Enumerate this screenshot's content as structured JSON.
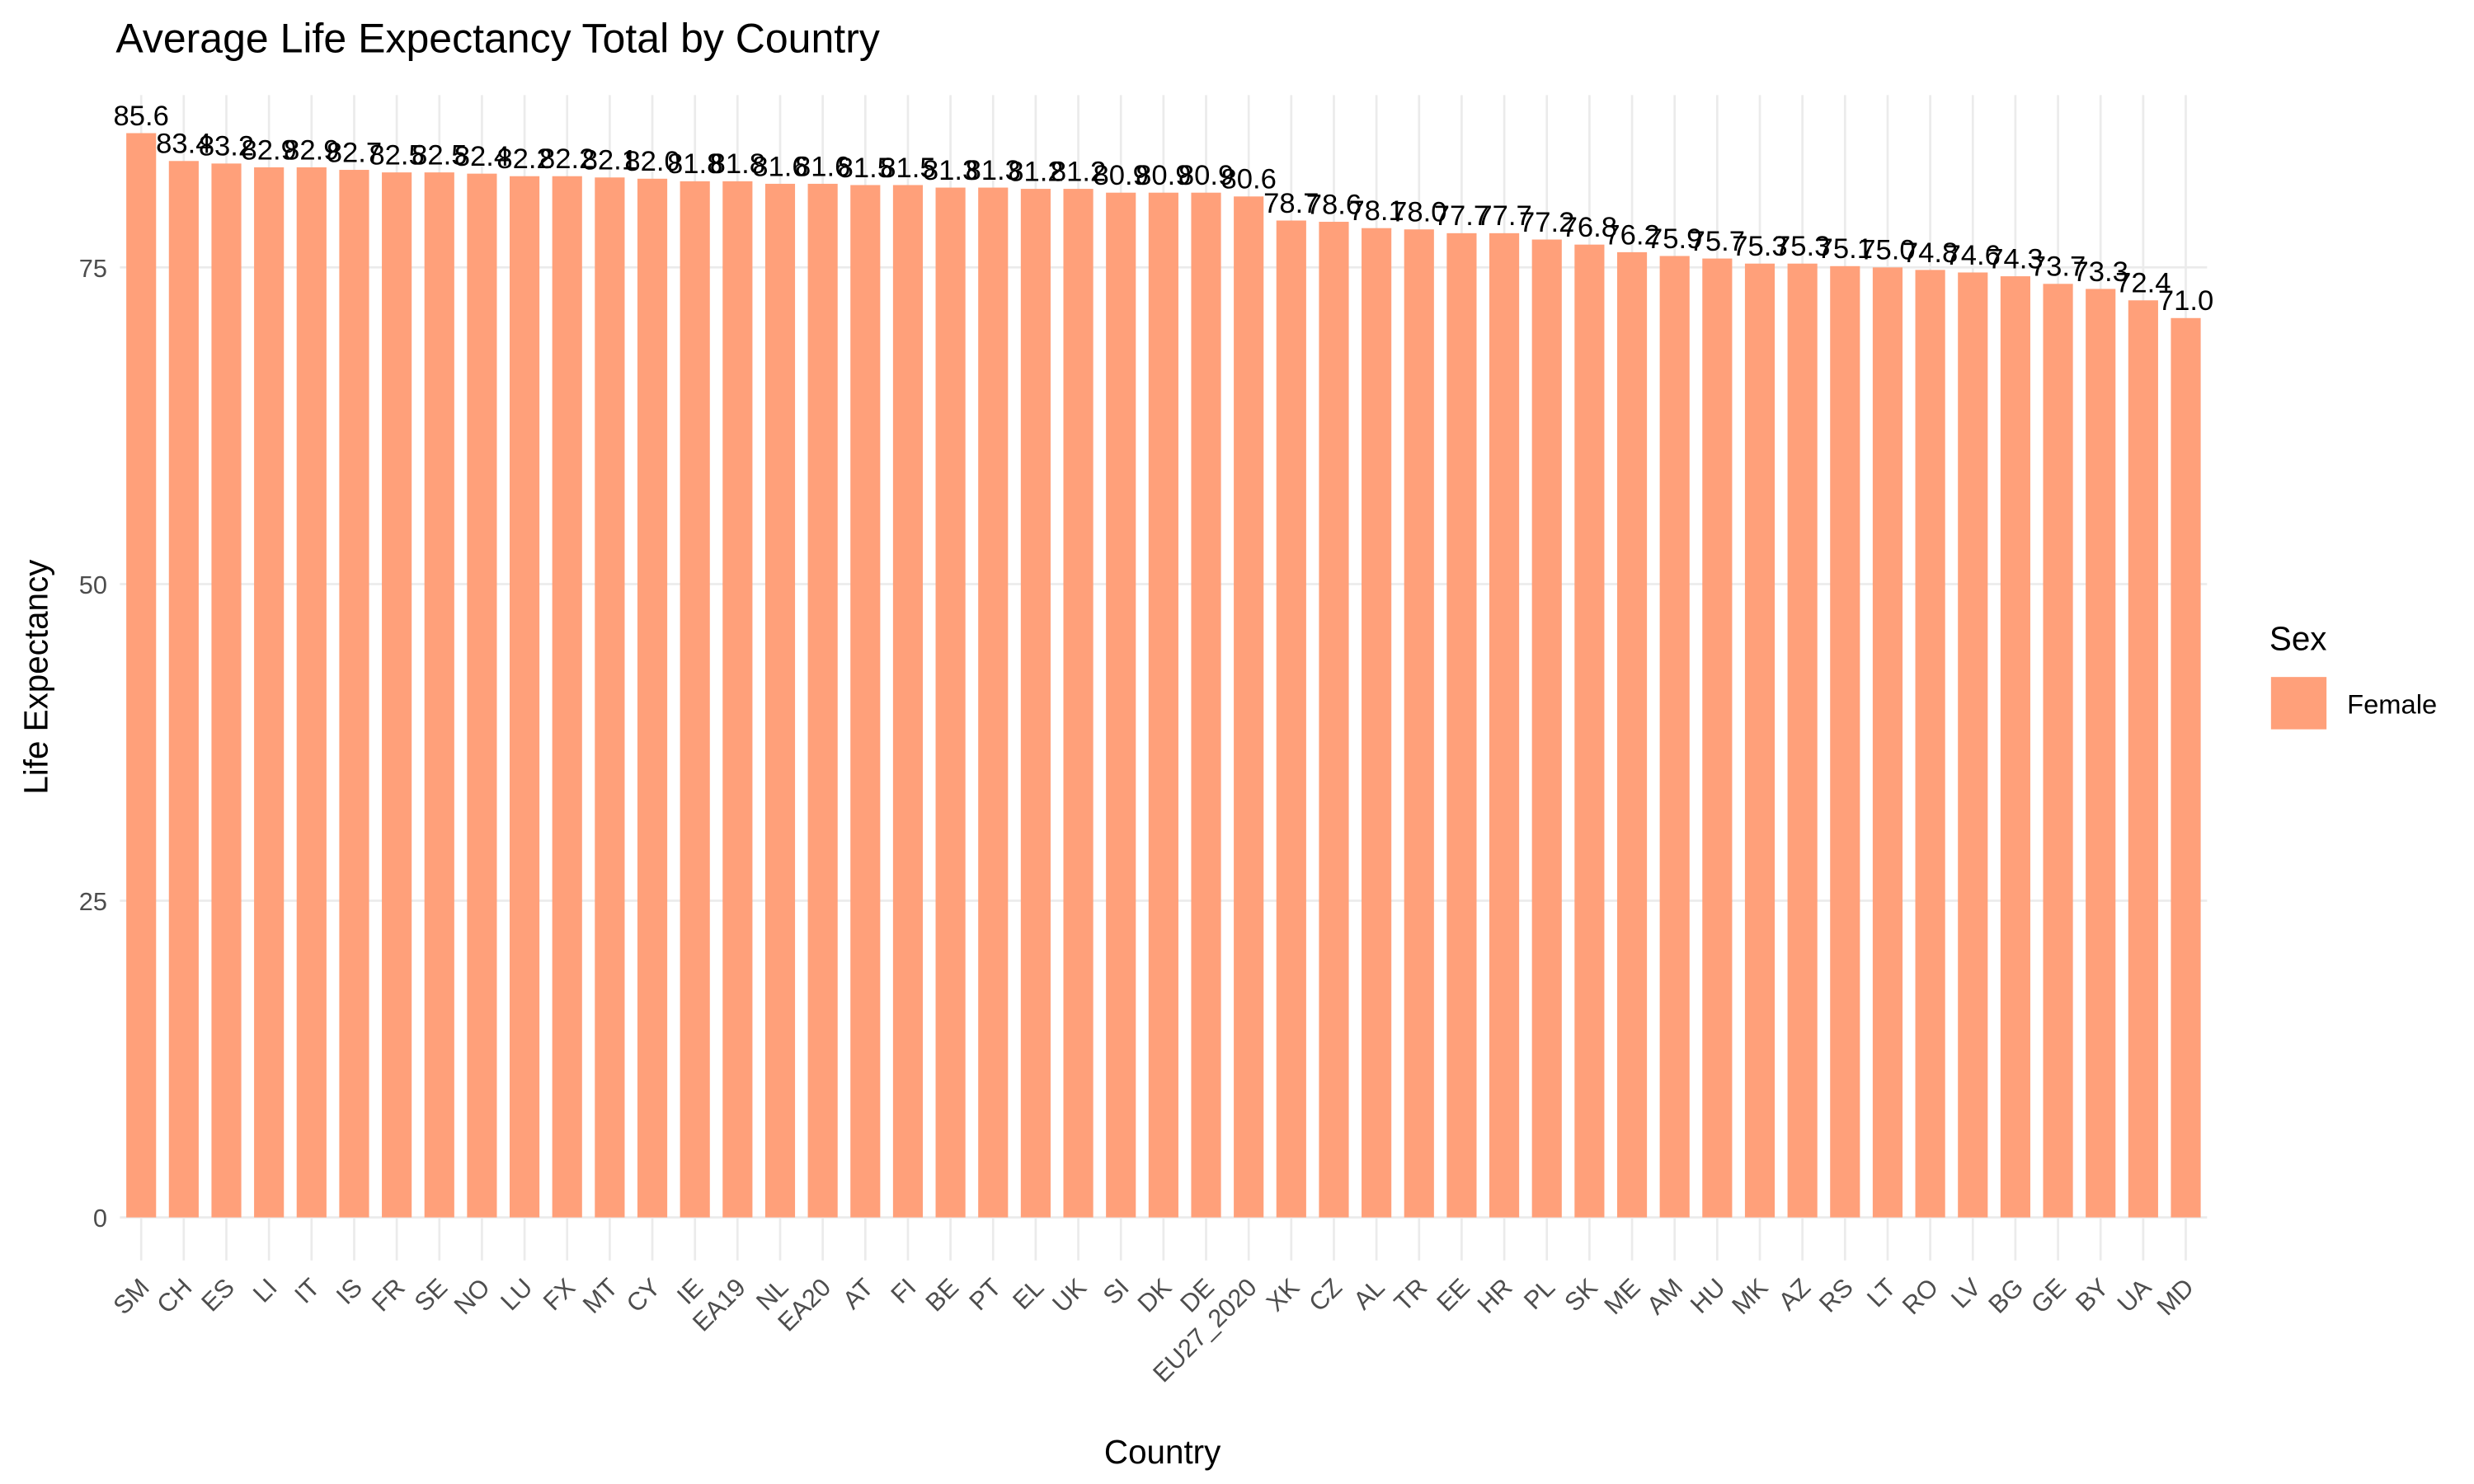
{
  "chart_data": {
    "type": "bar",
    "title": "Average Life Expectancy Total by Country",
    "x_label": "Country",
    "y_label": "Life Expectancy",
    "legend_title": "Sex",
    "categories": [
      "SM",
      "CH",
      "ES",
      "LI",
      "IT",
      "IS",
      "FR",
      "SE",
      "NO",
      "LU",
      "FX",
      "MT",
      "CY",
      "IE",
      "EA19",
      "NL",
      "EA20",
      "AT",
      "FI",
      "BE",
      "PT",
      "EL",
      "UK",
      "SI",
      "DK",
      "DE",
      "EU27_2020",
      "XK",
      "CZ",
      "AL",
      "TR",
      "EE",
      "HR",
      "PL",
      "SK",
      "ME",
      "AM",
      "HU",
      "MK",
      "AZ",
      "RS",
      "LT",
      "RO",
      "LV",
      "BG",
      "GE",
      "BY",
      "UA",
      "MD"
    ],
    "series": [
      {
        "name": "Female",
        "color": "#ffa07a",
        "values": [
          85.6,
          83.4,
          83.2,
          82.9,
          82.9,
          82.7,
          82.5,
          82.5,
          82.4,
          82.2,
          82.2,
          82.1,
          82.0,
          81.8,
          81.8,
          81.6,
          81.6,
          81.5,
          81.5,
          81.3,
          81.3,
          81.2,
          81.2,
          80.9,
          80.9,
          80.9,
          80.6,
          78.7,
          78.6,
          78.1,
          78.0,
          77.7,
          77.7,
          77.2,
          76.8,
          76.2,
          75.9,
          75.7,
          75.3,
          75.3,
          75.1,
          75.0,
          74.8,
          74.6,
          74.3,
          73.7,
          73.3,
          72.4,
          71.0
        ],
        "value_labels": [
          "85.6",
          "83.4",
          "83.2",
          "82.9",
          "82.9",
          "82.7",
          "82.5",
          "82.5",
          "82.4",
          "82.2",
          "82.2",
          "82.1",
          "82.0",
          "81.8",
          "81.8",
          "81.6",
          "81.6",
          "81.5",
          "81.5",
          "81.3",
          "81.3",
          "81.2",
          "81.2",
          "80.9",
          "80.9",
          "80.9",
          "80.6",
          "78.7",
          "78.6",
          "78.1",
          "78.0",
          "77.7",
          "77.7",
          "77.2",
          "76.8",
          "76.2",
          "75.9",
          "75.7",
          "75.3",
          "75.3",
          "75.1",
          "75.0",
          "74.8",
          "74.6",
          "74.3",
          "73.7",
          "73.3",
          "72.4",
          "71.0"
        ]
      }
    ],
    "ylim": [
      -3.4,
      88.6
    ],
    "yticks": [
      0,
      25,
      50,
      75
    ],
    "grid": true,
    "legend_position": "right"
  }
}
